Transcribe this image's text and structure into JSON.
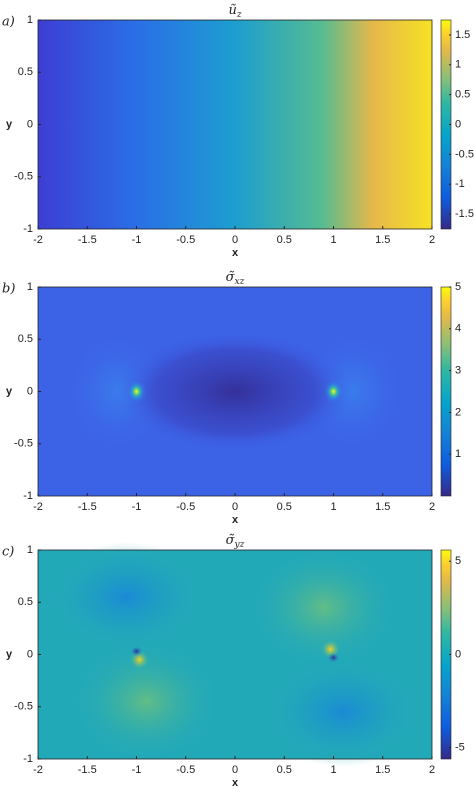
{
  "chart_data": [
    {
      "type": "heatmap",
      "panel_label": "a)",
      "title": "ũ",
      "title_sub": "z",
      "xlabel": "x",
      "ylabel": "y",
      "xlim": [
        -2,
        2
      ],
      "xticks": [
        -2,
        -1.5,
        -1,
        -0.5,
        0,
        0.5,
        1,
        1.5,
        2
      ],
      "ylim": [
        -1,
        1
      ],
      "yticks": [
        -1,
        -0.5,
        0,
        0.5,
        1
      ],
      "clim": [
        -1.75,
        1.75
      ],
      "cticks": [
        -1.5,
        -1,
        -0.5,
        0,
        0.5,
        1,
        1.5
      ]
    },
    {
      "type": "heatmap",
      "panel_label": "b)",
      "title": "σ̃",
      "title_sub": "xz",
      "xlabel": "x",
      "ylabel": "y",
      "xlim": [
        -2,
        2
      ],
      "xticks": [
        -2,
        -1.5,
        -1,
        -0.5,
        0,
        0.5,
        1,
        1.5,
        2
      ],
      "ylim": [
        -1,
        1
      ],
      "yticks": [
        -1,
        -0.5,
        0,
        0.5,
        1
      ],
      "clim": [
        0,
        5
      ],
      "cticks": [
        1,
        2,
        3,
        4,
        5
      ]
    },
    {
      "type": "heatmap",
      "panel_label": "c)",
      "title": "σ̃",
      "title_sub": "yz",
      "xlabel": "x",
      "ylabel": "y",
      "xlim": [
        -2,
        2
      ],
      "xticks": [
        -2,
        -1.5,
        -1,
        -0.5,
        0,
        0.5,
        1,
        1.5,
        2
      ],
      "ylim": [
        -1,
        1
      ],
      "yticks": [
        -1,
        -0.5,
        0,
        0.5,
        1
      ],
      "clim": [
        -5.6,
        5.6
      ],
      "cticks": [
        -5,
        0,
        5
      ]
    }
  ]
}
